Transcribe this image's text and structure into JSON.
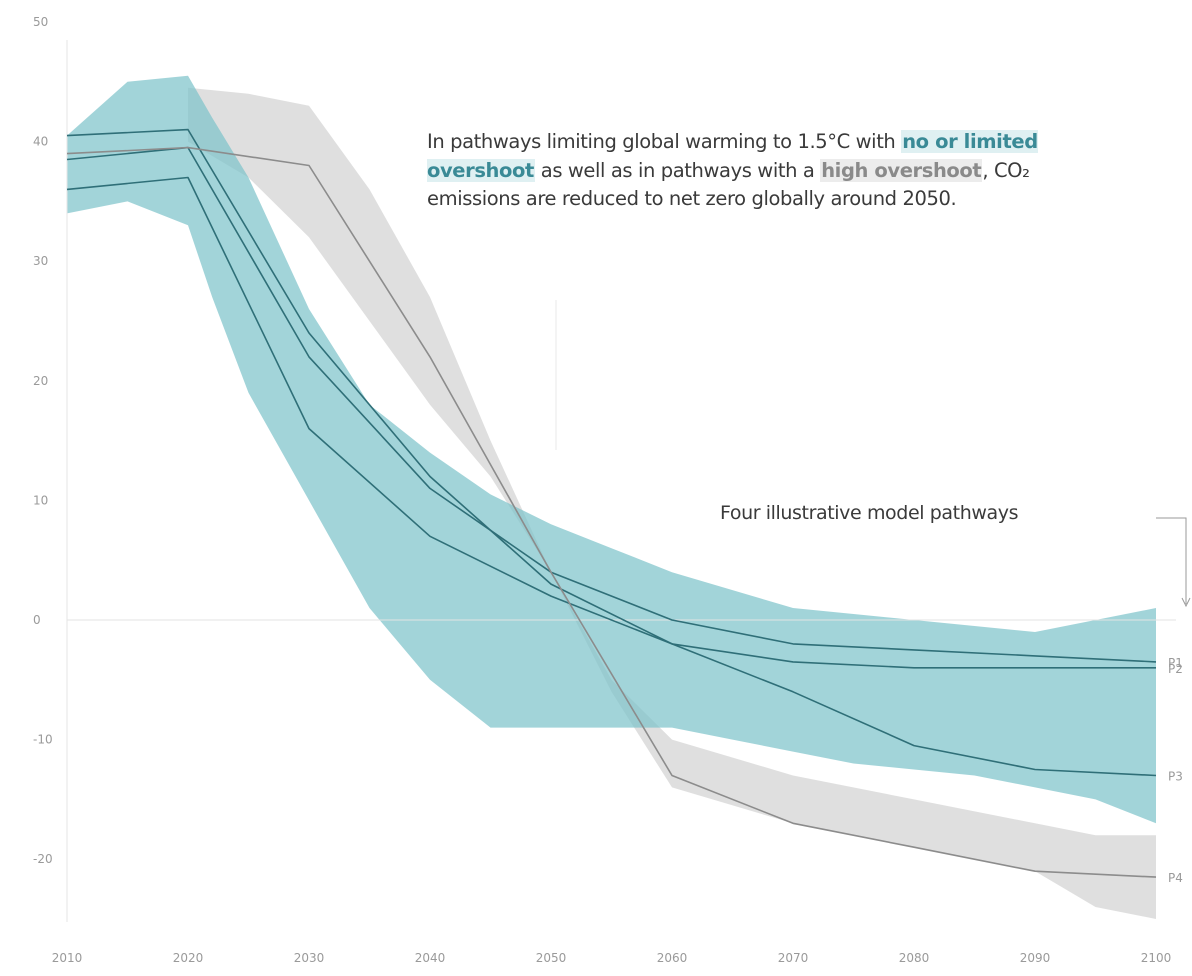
{
  "annotation": {
    "part1": "In pathways limiting global warming to 1.5°C with ",
    "highlight1": "no or limited overshoot",
    "part2": " as well as in pathways with a ",
    "highlight2": "high overshoot",
    "part3": ", CO₂ emissions are reduced to net zero globally around 2050."
  },
  "callout": {
    "text": "Four illustrative model pathways"
  },
  "colors": {
    "blue_band": "#7ec3cb",
    "grey_band": "#d9d9d9",
    "blue_line": "#2f6f78",
    "grey_line": "#8c8c8c",
    "zero_line": "#e3e3e3"
  },
  "chart_data": {
    "type": "area",
    "title": "",
    "xlabel": "",
    "ylabel": "",
    "xlim": [
      2010,
      2100
    ],
    "ylim": [
      -25,
      50
    ],
    "x_ticks": [
      2010,
      2020,
      2030,
      2040,
      2050,
      2060,
      2070,
      2080,
      2090,
      2100
    ],
    "y_ticks": [
      50,
      40,
      30,
      20,
      10,
      0,
      -10,
      -20
    ],
    "grid": false,
    "ranges": [
      {
        "group": "high overshoot",
        "color": "#d9d9d9",
        "x": [
          2020,
          2025,
          2030,
          2035,
          2040,
          2045,
          2050,
          2055,
          2060,
          2070,
          2080,
          2090,
          2095,
          2100
        ],
        "upper": [
          44.5,
          44,
          43,
          36,
          27,
          15,
          4,
          -5,
          -10,
          -13,
          -15,
          -17,
          -18,
          -18
        ],
        "lower": [
          40,
          37,
          32,
          25,
          18,
          12,
          4,
          -6,
          -14,
          -17,
          -19,
          -21,
          -24,
          -25
        ]
      },
      {
        "group": "no or limited overshoot",
        "color": "#7ec3cb",
        "x": [
          2010,
          2015,
          2020,
          2022,
          2025,
          2030,
          2035,
          2040,
          2045,
          2050,
          2055,
          2060,
          2065,
          2070,
          2075,
          2080,
          2085,
          2090,
          2095,
          2100
        ],
        "upper": [
          40.5,
          45,
          45.5,
          42,
          37,
          26,
          18,
          14,
          10.5,
          8,
          6,
          4,
          2.5,
          1,
          0.5,
          0,
          -0.5,
          -1,
          0,
          1
        ],
        "lower": [
          34,
          35,
          33,
          27,
          19,
          10,
          1,
          -5,
          -9,
          -9,
          -9,
          -9,
          -10,
          -11,
          -12,
          -12.5,
          -13,
          -14,
          -15,
          -17
        ]
      }
    ],
    "series": [
      {
        "name": "P1",
        "color": "#2f6f78",
        "x": [
          2010,
          2020,
          2030,
          2040,
          2050,
          2060,
          2070,
          2080,
          2090,
          2100
        ],
        "values": [
          38.5,
          39.5,
          22,
          11,
          4,
          0,
          -2,
          -2.5,
          -3,
          -3.5
        ]
      },
      {
        "name": "P2",
        "color": "#2f6f78",
        "x": [
          2010,
          2020,
          2030,
          2040,
          2050,
          2060,
          2070,
          2080,
          2090,
          2100
        ],
        "values": [
          40.5,
          41,
          24,
          12,
          3,
          -2,
          -3.5,
          -4,
          -4,
          -4
        ]
      },
      {
        "name": "P3",
        "color": "#2f6f78",
        "x": [
          2010,
          2020,
          2030,
          2040,
          2050,
          2060,
          2070,
          2080,
          2090,
          2100
        ],
        "values": [
          36,
          37,
          16,
          7,
          2,
          -2,
          -6,
          -10.5,
          -12.5,
          -13
        ]
      },
      {
        "name": "P4",
        "color": "#8c8c8c",
        "x": [
          2010,
          2020,
          2030,
          2040,
          2050,
          2060,
          2070,
          2080,
          2090,
          2100
        ],
        "values": [
          39,
          39.5,
          38,
          22,
          4,
          -13,
          -17,
          -19,
          -21,
          -21.5
        ]
      }
    ]
  }
}
